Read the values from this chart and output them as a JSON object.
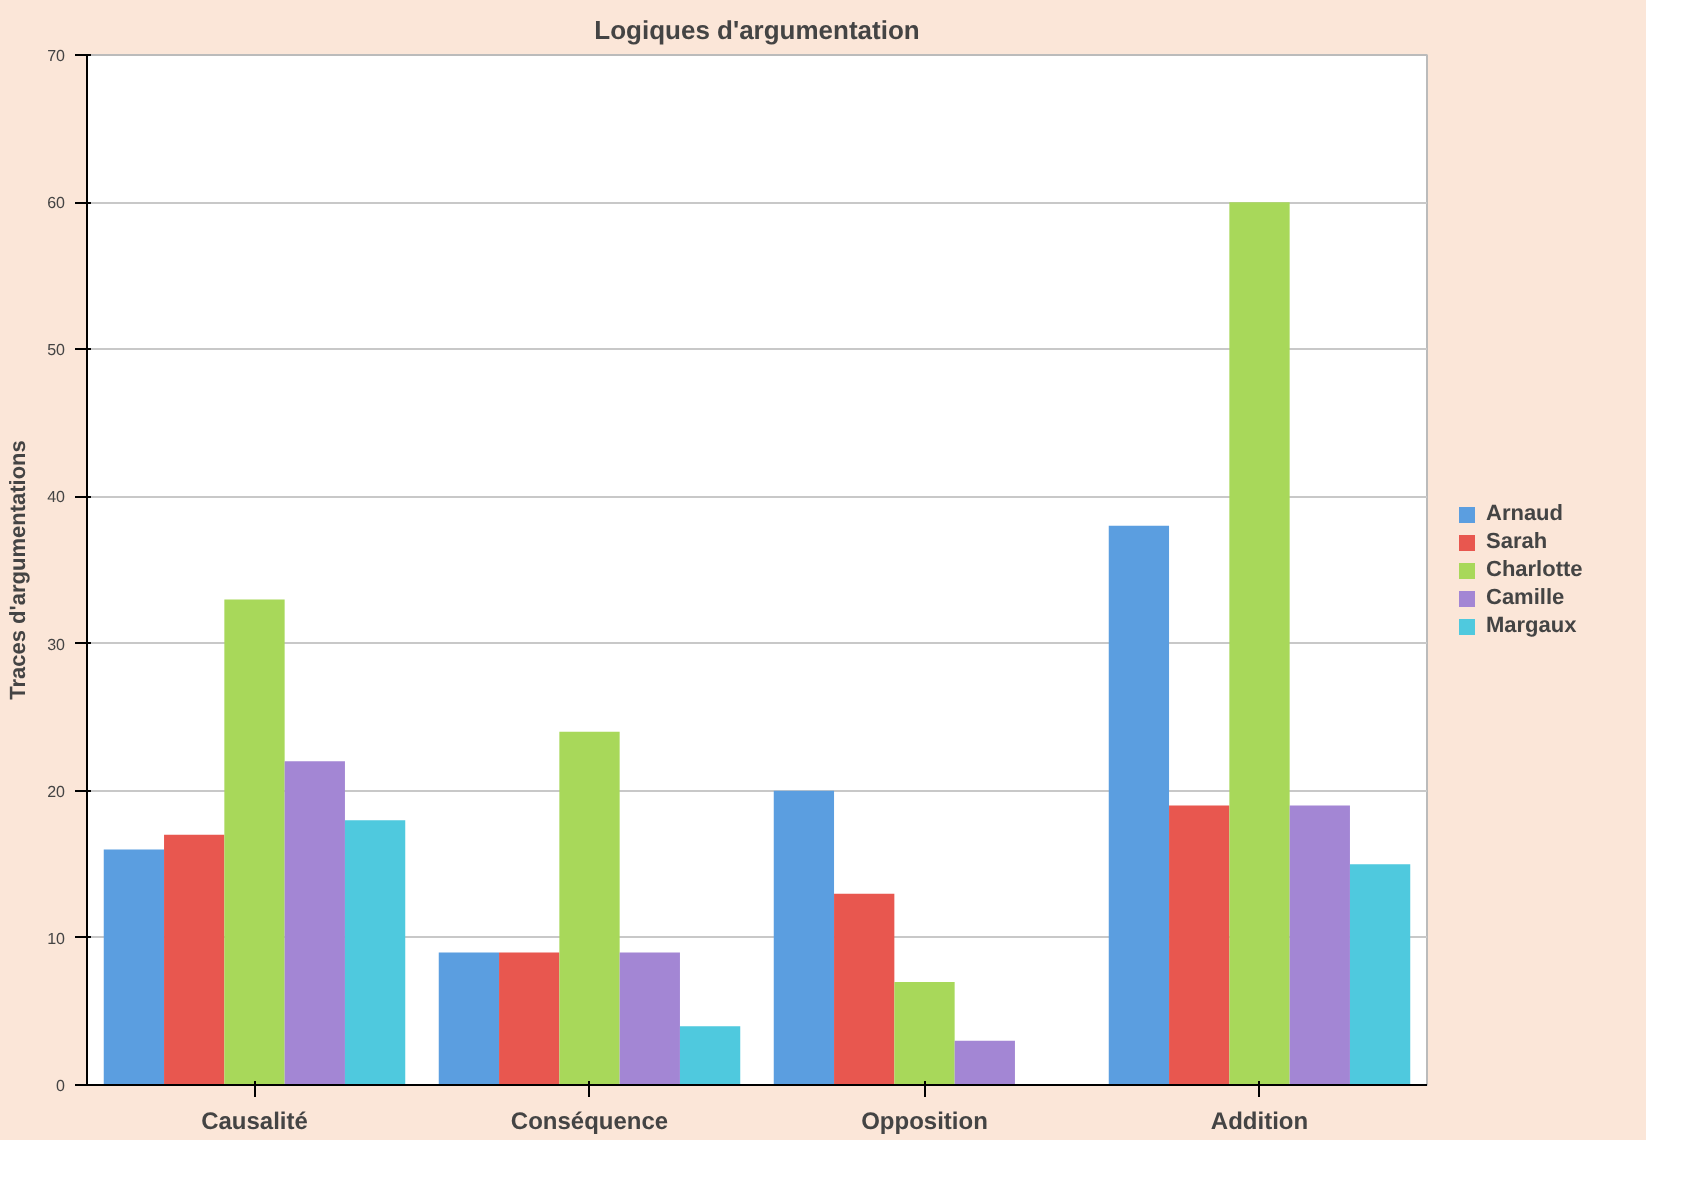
{
  "chart_data": {
    "type": "bar",
    "title": "Logiques d'argumentation",
    "ylabel": "Traces d'argumentations",
    "categories": [
      "Causalité",
      "Conséquence",
      "Opposition",
      "Addition"
    ],
    "series": [
      {
        "name": "Arnaud",
        "color": "#5b9ee0",
        "values": [
          16,
          9,
          20,
          38
        ]
      },
      {
        "name": "Sarah",
        "color": "#e8574f",
        "values": [
          17,
          9,
          13,
          19
        ]
      },
      {
        "name": "Charlotte",
        "color": "#a8d85a",
        "values": [
          33,
          24,
          7,
          60
        ]
      },
      {
        "name": "Camille",
        "color": "#a386d4",
        "values": [
          22,
          9,
          3,
          19
        ]
      },
      {
        "name": "Margaux",
        "color": "#4fc9de",
        "values": [
          18,
          4,
          0,
          15
        ]
      }
    ],
    "ylim": [
      0,
      70
    ],
    "yticks": [
      0,
      10,
      20,
      30,
      40,
      50,
      60,
      70
    ],
    "grid": "y",
    "legend": "right"
  }
}
